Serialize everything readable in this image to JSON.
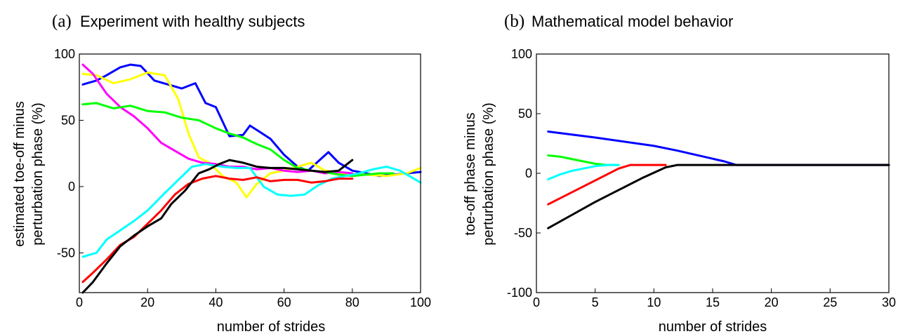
{
  "chart_data": [
    {
      "type": "line",
      "panel_letter": "(a)",
      "title": "Experiment with healthy subjects",
      "xlabel": "number of strides",
      "ylabel_lines": [
        "estimated toe-off minus",
        "perturbation phase (%)"
      ],
      "xlim": [
        0,
        100
      ],
      "ylim": [
        -80,
        100
      ],
      "xticks": [
        0,
        20,
        40,
        60,
        80,
        100
      ],
      "yticks": [
        -50,
        0,
        50,
        100
      ],
      "grid": false,
      "series": [
        {
          "color": "#0000ff",
          "x": [
            1,
            5,
            8,
            12,
            15,
            18,
            22,
            26,
            30,
            34,
            37,
            40,
            44,
            48,
            50,
            53,
            56,
            60,
            64,
            67,
            70,
            73,
            76,
            80,
            84,
            88,
            92,
            96,
            100
          ],
          "y": [
            77,
            80,
            84,
            90,
            92,
            91,
            80,
            77,
            74,
            78,
            63,
            60,
            38,
            39,
            46,
            41,
            36,
            24,
            15,
            12,
            19,
            26,
            18,
            12,
            10,
            8,
            9,
            10,
            11
          ]
        },
        {
          "color": "#ffff00",
          "x": [
            1,
            5,
            10,
            15,
            20,
            25,
            29,
            32,
            35,
            38,
            42,
            46,
            49,
            52,
            56,
            60,
            64,
            68,
            72,
            78,
            84,
            90,
            96,
            100
          ],
          "y": [
            85,
            84,
            78,
            81,
            86,
            84,
            66,
            40,
            22,
            18,
            8,
            3,
            -8,
            2,
            10,
            12,
            15,
            18,
            12,
            10,
            9,
            8,
            10,
            14
          ]
        },
        {
          "color": "#ff00ff",
          "x": [
            1,
            4,
            8,
            12,
            16,
            20,
            24,
            28,
            32,
            36,
            40,
            44,
            48,
            52,
            56,
            60,
            64,
            68,
            72,
            76,
            80
          ],
          "y": [
            92,
            85,
            70,
            60,
            53,
            44,
            33,
            27,
            21,
            18,
            17,
            15,
            15,
            13,
            14,
            12,
            11,
            12,
            10,
            11,
            10
          ]
        },
        {
          "color": "#00ff00",
          "x": [
            1,
            5,
            10,
            15,
            20,
            25,
            30,
            35,
            40,
            44,
            48,
            52,
            56,
            60,
            64,
            68,
            72,
            76,
            80,
            84,
            88,
            92
          ],
          "y": [
            62,
            63,
            59,
            61,
            57,
            56,
            52,
            50,
            44,
            40,
            37,
            32,
            28,
            20,
            14,
            12,
            11,
            9,
            8,
            9,
            10,
            10
          ]
        },
        {
          "color": "#00ffff",
          "x": [
            1,
            5,
            8,
            12,
            16,
            20,
            25,
            29,
            33,
            37,
            42,
            46,
            50,
            54,
            58,
            62,
            66,
            70,
            74,
            78,
            82,
            86,
            90,
            94,
            98,
            100
          ],
          "y": [
            -53,
            -50,
            -40,
            -33,
            -26,
            -18,
            -5,
            5,
            15,
            17,
            15,
            14,
            14,
            0,
            -6,
            -7,
            -6,
            1,
            6,
            8,
            10,
            13,
            15,
            12,
            6,
            3
          ]
        },
        {
          "color": "#ff0000",
          "x": [
            1,
            4,
            8,
            12,
            16,
            20,
            24,
            28,
            32,
            36,
            40,
            44,
            48,
            52,
            56,
            60,
            64,
            68,
            72,
            76,
            80
          ],
          "y": [
            -72,
            -65,
            -55,
            -44,
            -38,
            -28,
            -18,
            -6,
            2,
            6,
            8,
            6,
            5,
            7,
            4,
            5,
            5,
            3,
            4,
            6,
            6
          ]
        },
        {
          "color": "#000000",
          "x": [
            1,
            4,
            8,
            12,
            16,
            20,
            24,
            27,
            31,
            35,
            38,
            41,
            44,
            48,
            52,
            56,
            60,
            64,
            68,
            72,
            76,
            80
          ],
          "y": [
            -80,
            -72,
            -58,
            -45,
            -37,
            -30,
            -24,
            -13,
            -3,
            10,
            13,
            17,
            20,
            18,
            15,
            14,
            14,
            13,
            12,
            11,
            12,
            20
          ]
        }
      ]
    },
    {
      "type": "line",
      "panel_letter": "(b)",
      "title": "Mathematical model behavior",
      "xlabel": "number of strides",
      "ylabel_lines": [
        "toe-off phase minus",
        "perturbation phase (%)"
      ],
      "xlim": [
        0,
        30
      ],
      "ylim": [
        -100,
        100
      ],
      "xticks": [
        0,
        5,
        10,
        15,
        20,
        25,
        30
      ],
      "yticks": [
        -100,
        -50,
        0,
        50,
        100
      ],
      "grid": false,
      "series": [
        {
          "color": "#0000ff",
          "x": [
            1,
            5,
            10,
            12,
            16,
            17,
            30
          ],
          "y": [
            35,
            30,
            23,
            19,
            10,
            7,
            7
          ]
        },
        {
          "color": "#00ff00",
          "x": [
            1,
            2,
            3,
            4,
            5,
            6,
            7
          ],
          "y": [
            15,
            14,
            12,
            10,
            8,
            7,
            7
          ]
        },
        {
          "color": "#00ffff",
          "x": [
            1,
            2,
            3,
            4,
            5,
            6,
            7
          ],
          "y": [
            -5,
            -1,
            2,
            4,
            6,
            7,
            7
          ]
        },
        {
          "color": "#ff0000",
          "x": [
            1,
            3,
            5,
            7,
            8,
            11
          ],
          "y": [
            -26,
            -16,
            -6,
            4,
            7,
            7
          ]
        },
        {
          "color": "#000000",
          "x": [
            1,
            3,
            5,
            7,
            9,
            11,
            12,
            30
          ],
          "y": [
            -46,
            -35,
            -24,
            -14,
            -4,
            5,
            7,
            7
          ]
        }
      ]
    }
  ]
}
